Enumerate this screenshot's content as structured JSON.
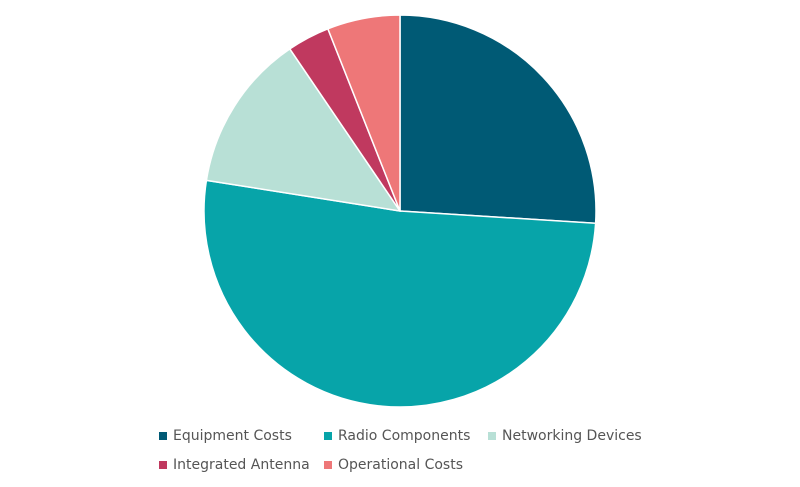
{
  "chart_data": {
    "type": "pie",
    "categories": [
      "Equipment Costs",
      "Radio Components",
      "Networking Devices",
      "Integrated Antenna",
      "Operational Costs"
    ],
    "values": [
      26,
      51.5,
      13,
      3.5,
      6
    ],
    "colors": [
      "#005a75",
      "#07a4a9",
      "#b8e0d6",
      "#c0395f",
      "#ee7778"
    ]
  }
}
